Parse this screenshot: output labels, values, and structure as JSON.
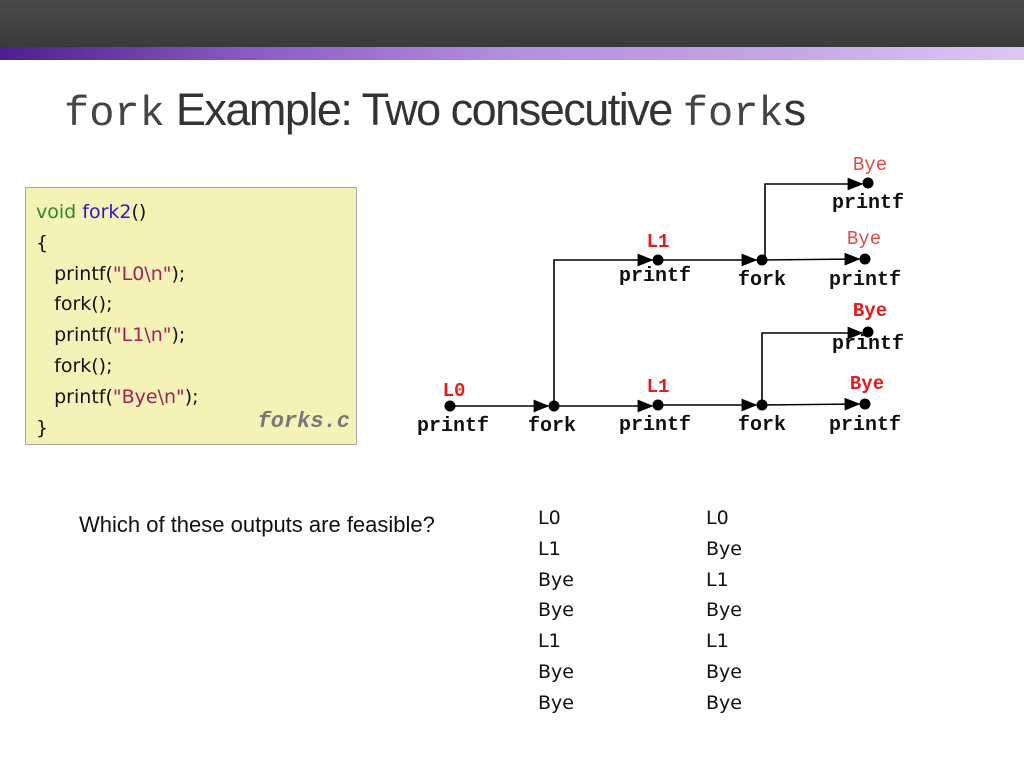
{
  "title": {
    "mono1": "fork",
    "text": "Example: Two consecutive",
    "mono2": "fork",
    "suffix": "s"
  },
  "code": {
    "lines": [
      "void",
      "fork2",
      "()",
      "{",
      "printf(",
      "\"L0\\n\"",
      ");",
      "fork();",
      "printf(",
      "\"L1\\n\"",
      ");",
      "fork();",
      "printf(",
      "\"Bye\\n\"",
      ");",
      "}"
    ],
    "filename": "forks.c",
    "colors": {
      "keyword": "#2a8a2a",
      "function": "#3311cc",
      "string": "#a0205a",
      "background": "#f5f2b8"
    }
  },
  "diagram": {
    "ops": {
      "printf": "printf",
      "fork": "fork"
    },
    "outputs": {
      "l0": "L0",
      "l1_top": "L1",
      "l1_bottom": "L1",
      "bye1": "Bye",
      "bye2": "Bye",
      "bye3": "Bye",
      "bye4": "Bye"
    },
    "colors": {
      "output": "#e31b1b"
    }
  },
  "question": "Which of these outputs are feasible?",
  "options": [
    [
      "L0",
      "L1",
      "Bye",
      "Bye",
      "L1",
      "Bye",
      "Bye"
    ],
    [
      "L0",
      "Bye",
      "L1",
      "Bye",
      "L1",
      "Bye",
      "Bye"
    ]
  ]
}
